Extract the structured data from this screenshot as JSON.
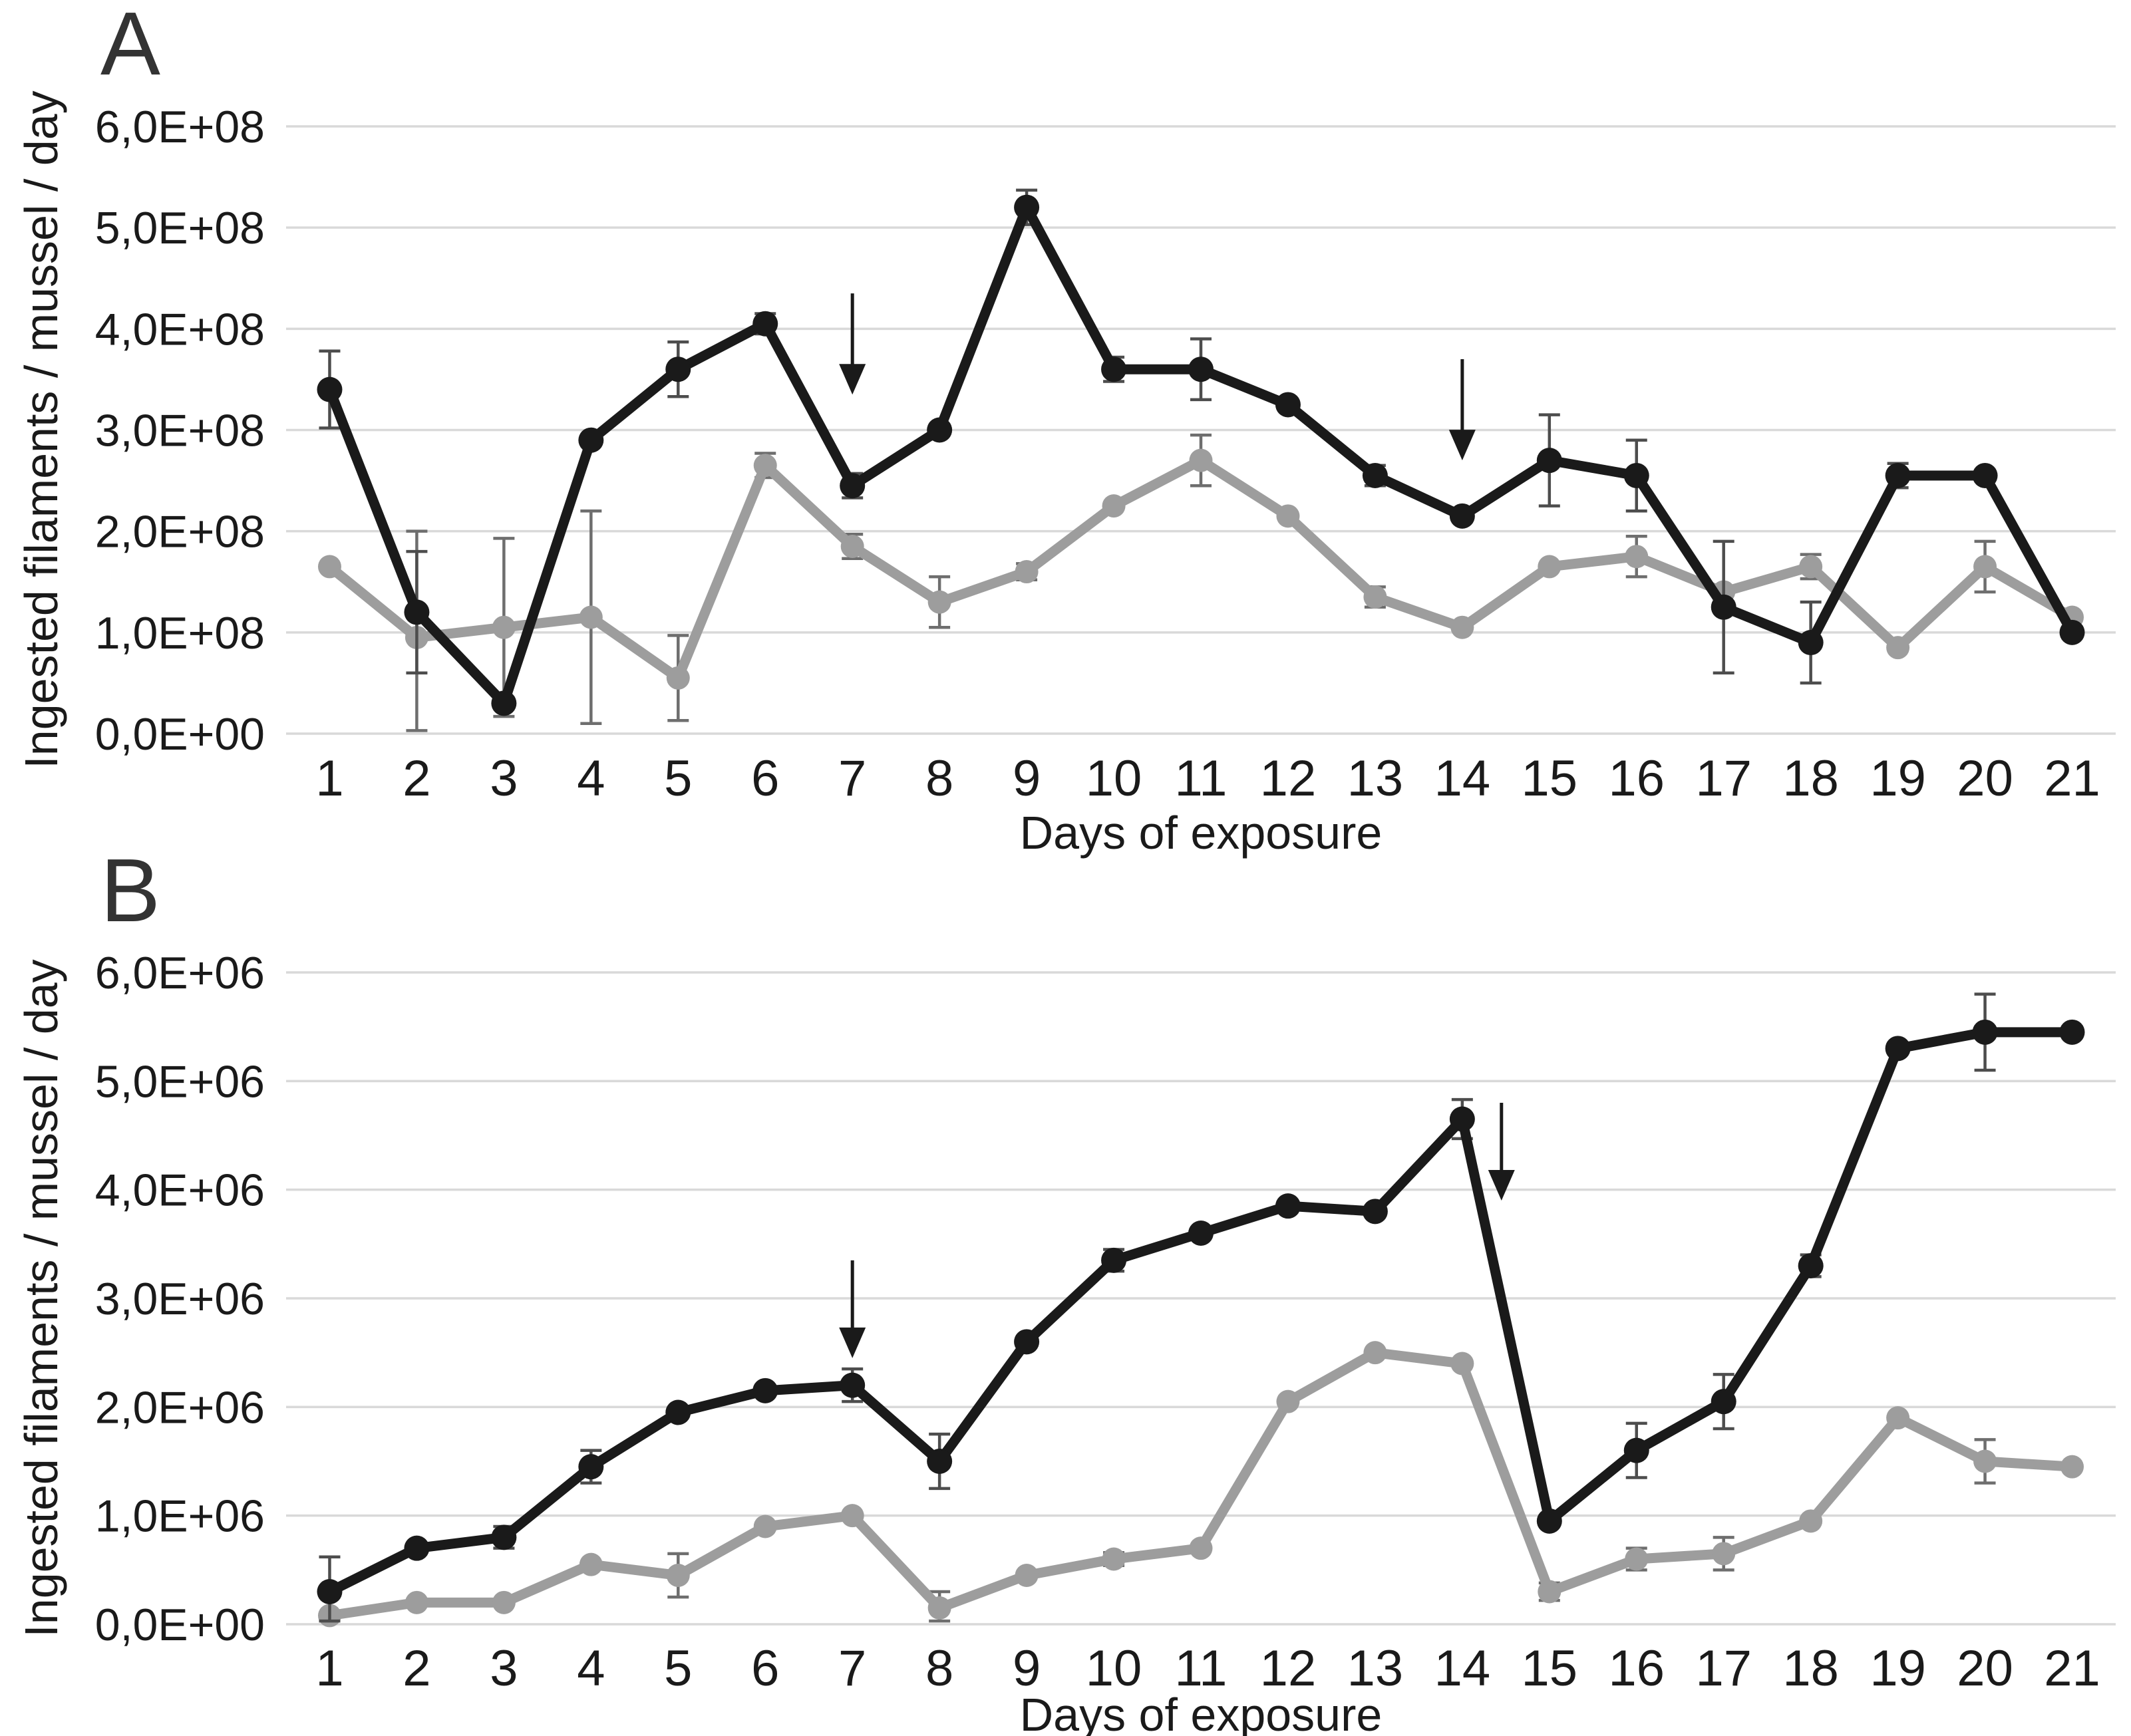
{
  "figure": {
    "background": "#ffffff",
    "xlabel": "Days of exposure",
    "ylabel": "Ingested filaments / mussel / day",
    "x_tick_labels": [
      "1",
      "2",
      "3",
      "4",
      "5",
      "6",
      "7",
      "8",
      "9",
      "10",
      "11",
      "12",
      "13",
      "14",
      "15",
      "16",
      "17",
      "18",
      "19",
      "20",
      "21"
    ],
    "gridline_color": "#d9d9d9",
    "arrow_color": "#1a1a1a"
  },
  "chart_data": [
    {
      "type": "line",
      "panel_label": "A",
      "xlabel": "Days of exposure",
      "ylabel": "Ingested filaments / mussel / day",
      "x": [
        1,
        2,
        3,
        4,
        5,
        6,
        7,
        8,
        9,
        10,
        11,
        12,
        13,
        14,
        15,
        16,
        17,
        18,
        19,
        20,
        21
      ],
      "y_tick_labels": [
        "0,0E+00",
        "1,0E+08",
        "2,0E+08",
        "3,0E+08",
        "4,0E+08",
        "5,0E+08",
        "6,0E+08"
      ],
      "ylim_display_units": [
        0,
        6
      ],
      "unit": 100000000,
      "grid": true,
      "legend": "none",
      "series": [
        {
          "name": "gray-series",
          "color": "#9d9d9d",
          "error_color": "#6e6e6e",
          "values": [
            1.65,
            0.95,
            1.05,
            1.15,
            0.55,
            2.65,
            1.85,
            1.3,
            1.6,
            2.25,
            2.7,
            2.15,
            1.35,
            1.05,
            1.65,
            1.75,
            1.4,
            1.65,
            0.85,
            1.65,
            1.15
          ],
          "errors": [
            null,
            1.05,
            0.88,
            1.05,
            0.42,
            0.12,
            0.12,
            0.25,
            0.08,
            null,
            0.25,
            null,
            0.1,
            null,
            null,
            0.2,
            null,
            0.12,
            null,
            0.25,
            null
          ]
        },
        {
          "name": "black-series",
          "color": "#1a1a1a",
          "error_color": "#4d4d4d",
          "values": [
            3.4,
            1.2,
            0.3,
            2.9,
            3.6,
            4.05,
            2.45,
            3.0,
            5.2,
            3.6,
            3.6,
            3.25,
            2.55,
            2.15,
            2.7,
            2.55,
            1.25,
            0.9,
            2.55,
            2.55,
            1.0
          ],
          "errors": [
            0.38,
            0.6,
            null,
            null,
            0.27,
            0.1,
            0.12,
            null,
            0.17,
            0.12,
            0.3,
            null,
            0.1,
            null,
            0.45,
            0.35,
            0.65,
            0.4,
            0.12,
            null,
            null
          ]
        }
      ],
      "arrows": [
        {
          "x_day": 7,
          "y_from": 4.35,
          "y_to": 3.35
        },
        {
          "x_day": 14,
          "y_from": 3.7,
          "y_to": 2.7
        }
      ]
    },
    {
      "type": "line",
      "panel_label": "B",
      "xlabel": "Days of exposure",
      "ylabel": "Ingested filaments / mussel / day",
      "x": [
        1,
        2,
        3,
        4,
        5,
        6,
        7,
        8,
        9,
        10,
        11,
        12,
        13,
        14,
        15,
        16,
        17,
        18,
        19,
        20,
        21
      ],
      "y_tick_labels": [
        "0,0E+00",
        "1,0E+06",
        "2,0E+06",
        "3,0E+06",
        "4,0E+06",
        "5,0E+06",
        "6,0E+06"
      ],
      "ylim_display_units": [
        0,
        6
      ],
      "unit": 1000000,
      "grid": true,
      "legend": "none",
      "series": [
        {
          "name": "gray-series",
          "color": "#9d9d9d",
          "error_color": "#6e6e6e",
          "values": [
            0.08,
            0.2,
            0.2,
            0.55,
            0.45,
            0.9,
            1.0,
            0.15,
            0.45,
            0.6,
            0.7,
            2.05,
            2.5,
            2.4,
            0.3,
            0.6,
            0.65,
            0.95,
            1.9,
            1.5,
            1.45
          ],
          "errors": [
            null,
            null,
            null,
            null,
            0.2,
            null,
            null,
            0.15,
            null,
            0.06,
            null,
            null,
            null,
            null,
            0.08,
            0.1,
            0.15,
            null,
            null,
            0.2,
            null
          ]
        },
        {
          "name": "black-series",
          "color": "#1a1a1a",
          "error_color": "#4d4d4d",
          "values": [
            0.3,
            0.7,
            0.8,
            1.45,
            1.95,
            2.15,
            2.2,
            1.5,
            2.6,
            3.35,
            3.6,
            3.85,
            3.8,
            4.65,
            0.95,
            1.6,
            2.05,
            3.3,
            5.3,
            5.45,
            5.45
          ],
          "errors": [
            0.32,
            null,
            0.1,
            0.15,
            null,
            null,
            0.15,
            0.25,
            null,
            0.1,
            null,
            null,
            null,
            0.18,
            null,
            0.25,
            0.25,
            0.1,
            null,
            0.35,
            null
          ]
        }
      ],
      "arrows": [
        {
          "x_day": 7,
          "y_from": 3.35,
          "y_to": 2.45
        },
        {
          "x_day": 14.45,
          "y_from": 4.8,
          "y_to": 3.9
        }
      ]
    }
  ]
}
